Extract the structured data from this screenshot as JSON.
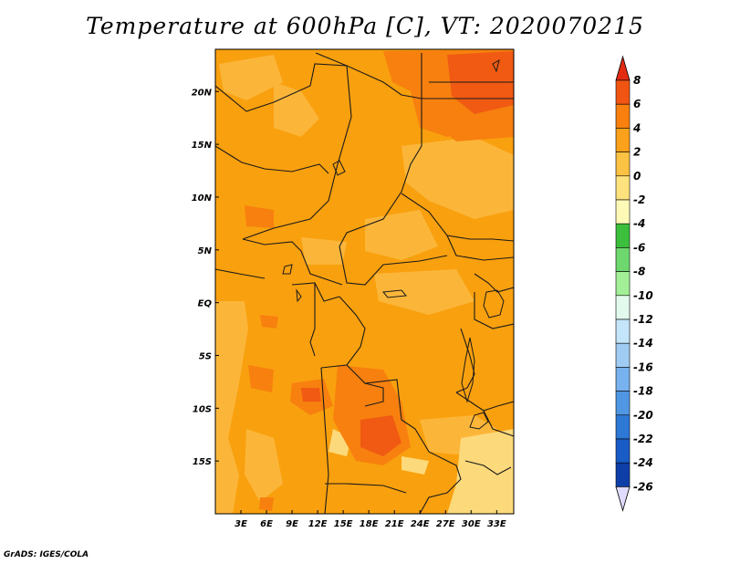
{
  "title": "Temperature at 600hPa [C], VT: 2020070215",
  "credit": "GrADS: IGES/COLA",
  "map": {
    "lon_range": [
      0,
      35
    ],
    "lat_range": [
      -20,
      24
    ],
    "lon_ticks": [
      3,
      6,
      9,
      12,
      15,
      18,
      21,
      24,
      27,
      30,
      33
    ],
    "lon_tick_labels": [
      "3E",
      "6E",
      "9E",
      "12E",
      "15E",
      "18E",
      "21E",
      "24E",
      "27E",
      "30E",
      "33E"
    ],
    "lat_ticks": [
      20,
      15,
      10,
      5,
      0,
      -5,
      -10,
      -15
    ],
    "lat_tick_labels": [
      "20N",
      "15N",
      "10N",
      "5N",
      "EQ",
      "5S",
      "10S",
      "15S"
    ]
  },
  "colorbar": {
    "levels": [
      "8",
      "6",
      "4",
      "2",
      "0",
      "-2",
      "-4",
      "-6",
      "-8",
      "-10",
      "-12",
      "-14",
      "-16",
      "-18",
      "-20",
      "-22",
      "-24",
      "-26"
    ],
    "colors": [
      "#dc2b12",
      "#f25512",
      "#f9800e",
      "#fba11b",
      "#fcc243",
      "#fde27e",
      "#fef9b6",
      "#3cbf3c",
      "#6ed86e",
      "#a2ef98",
      "#e2f9ee",
      "#c4e5fa",
      "#a0ccf4",
      "#78b2ee",
      "#4f97e3",
      "#2e78d6",
      "#1a5cc7",
      "#0e3fa8"
    ],
    "top_color": "#e22b11",
    "bottom_color": "#e0dcff"
  },
  "field_colors": {
    "base": "#f9a00e",
    "light": "#fbb63a",
    "pale": "#fcd97a",
    "warm": "#f7800f",
    "hot": "#f05a12",
    "hotter": "#e8421a"
  }
}
